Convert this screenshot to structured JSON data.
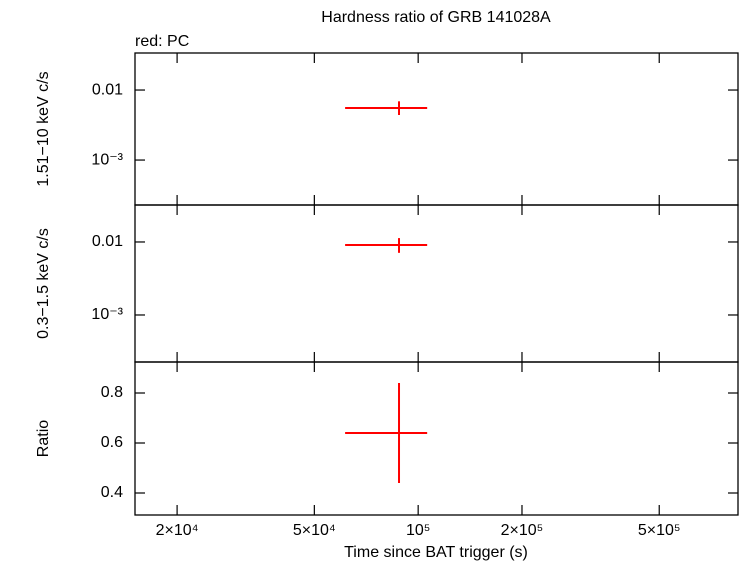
{
  "chart_data": [
    {
      "type": "errorbar",
      "title": "Hardness ratio of GRB 141028A",
      "annotation": "red: PC",
      "ylabel": "1.51−10 keV c/s",
      "log_x": true,
      "log_y": true,
      "xlim": [
        15100,
        846000
      ],
      "ylim": [
        0.000228,
        0.0338
      ],
      "yticks": [
        {
          "value": 0.01,
          "label": "0.01"
        },
        {
          "value": 0.001,
          "label": "10⁻³"
        }
      ],
      "series": [
        {
          "color": "#ff0000",
          "x": [
            88000
          ],
          "x_low": [
            61400
          ],
          "x_high": [
            106200
          ],
          "values": [
            0.00553
          ],
          "y_low": [
            0.0044
          ],
          "y_high": [
            0.0069
          ]
        }
      ]
    },
    {
      "type": "errorbar",
      "ylabel": "0.3−1.5 keV c/s",
      "log_x": true,
      "log_y": true,
      "xlim": [
        15100,
        846000
      ],
      "ylim": [
        0.000227,
        0.0321
      ],
      "yticks": [
        {
          "value": 0.01,
          "label": "0.01"
        },
        {
          "value": 0.001,
          "label": "10⁻³"
        }
      ],
      "series": [
        {
          "color": "#ff0000",
          "x": [
            88000
          ],
          "x_low": [
            61400
          ],
          "x_high": [
            106200
          ],
          "values": [
            0.0091
          ],
          "y_low": [
            0.0071
          ],
          "y_high": [
            0.0113
          ]
        }
      ]
    },
    {
      "type": "errorbar",
      "ylabel": "Ratio",
      "xlabel": "Time since BAT trigger (s)",
      "log_x": true,
      "log_y": false,
      "xlim": [
        15100,
        846000
      ],
      "ylim": [
        0.312,
        0.924
      ],
      "xticks": [
        {
          "value": 20000,
          "label": "2×10⁴"
        },
        {
          "value": 50000,
          "label": "5×10⁴"
        },
        {
          "value": 100000,
          "label": "10⁵"
        },
        {
          "value": 200000,
          "label": "2×10⁵"
        },
        {
          "value": 500000,
          "label": "5×10⁵"
        }
      ],
      "yticks": [
        0.4,
        0.6,
        0.8
      ],
      "series": [
        {
          "color": "#ff0000",
          "x": [
            88000
          ],
          "x_low": [
            61400
          ],
          "x_high": [
            106200
          ],
          "values": [
            0.64
          ],
          "y_low": [
            0.44
          ],
          "y_high": [
            0.84
          ]
        }
      ]
    }
  ]
}
